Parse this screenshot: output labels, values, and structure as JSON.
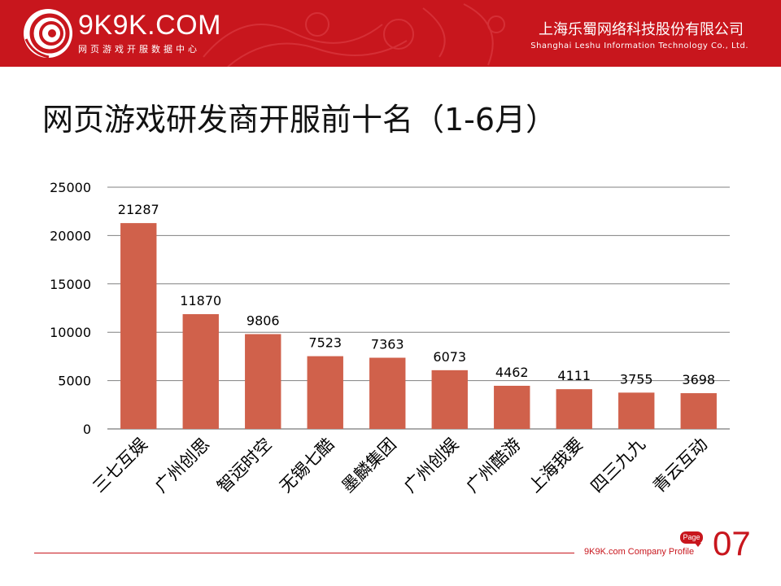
{
  "header": {
    "logo_text": "9K9K.COM",
    "logo_subtitle": "网页游戏开服数据中心",
    "company_cn": "上海乐蜀网络科技股份有限公司",
    "company_en": "Shanghai Leshu Information Technology Co., Ltd.",
    "logo_icon": "swirl-logo-icon"
  },
  "title": "网页游戏研发商开服前十名（1-6月）",
  "colors": {
    "brand_red": "#c8161d",
    "bar": "#d0614b",
    "grid": "#808080"
  },
  "chart_data": {
    "type": "bar",
    "title": "",
    "xlabel": "",
    "ylabel": "",
    "categories": [
      "三七互娱",
      "广州创思",
      "智远时空",
      "无锡七酷",
      "墨麟集团",
      "广州创娱",
      "广州酷游",
      "上海我要",
      "四三九九",
      "青云互动"
    ],
    "values": [
      21287,
      11870,
      9806,
      7523,
      7363,
      6073,
      4462,
      4111,
      3755,
      3698
    ],
    "ylim": [
      0,
      25000
    ],
    "yticks": [
      "0",
      "5000",
      "10000",
      "15000",
      "20000",
      "25000"
    ],
    "data_labels": [
      "21287",
      "11870",
      "9806",
      "7523",
      "7363",
      "6073",
      "4462",
      "4111",
      "3755",
      "3698"
    ],
    "grid": true,
    "legend": "none"
  },
  "footer": {
    "text": "9K9K.com Company Profile",
    "page_badge": "Page",
    "page_number": "07"
  }
}
